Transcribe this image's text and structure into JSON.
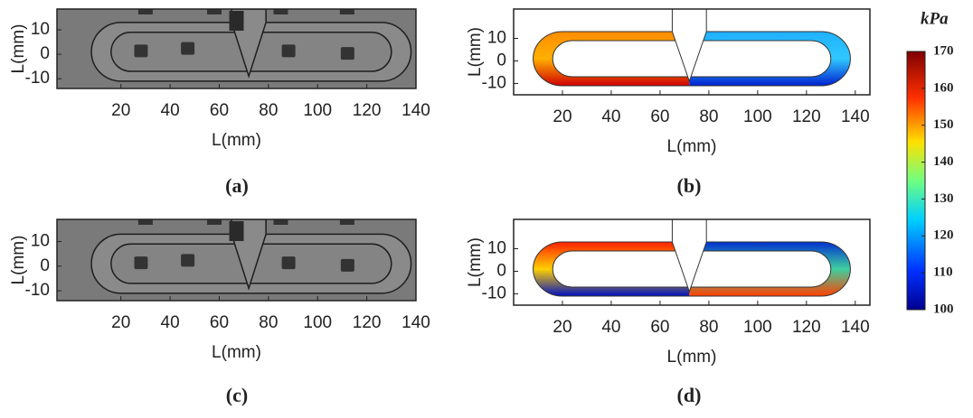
{
  "panels": [
    {
      "label": "(a)",
      "xlabel": "L(mm)",
      "ylabel": "L(mm)",
      "xlim": [
        -6,
        140
      ],
      "xticks": [
        20,
        40,
        60,
        80,
        100,
        120,
        140
      ],
      "ylim": [
        -14,
        18.5
      ],
      "yticks": [
        -10,
        0,
        10
      ]
    },
    {
      "label": "(b)",
      "xlabel": "L(mm)",
      "ylabel": "L(mm)",
      "xlim": [
        0,
        146
      ],
      "xticks": [
        20,
        40,
        60,
        80,
        100,
        120,
        140
      ],
      "ylim": [
        -15,
        23
      ],
      "yticks": [
        -10,
        0,
        10
      ]
    },
    {
      "label": "(c)",
      "xlabel": "L(mm)",
      "ylabel": "L(mm)",
      "xlim": [
        -6,
        140
      ],
      "xticks": [
        20,
        40,
        60,
        80,
        100,
        120,
        140
      ],
      "ylim": [
        -14,
        19
      ],
      "yticks": [
        -10,
        0,
        10
      ]
    },
    {
      "label": "(d)",
      "xlabel": "L(mm)",
      "ylabel": "L(mm)",
      "xlim": [
        0,
        146
      ],
      "xticks": [
        20,
        40,
        60,
        80,
        100,
        120,
        140
      ],
      "ylim": [
        -15,
        23
      ],
      "yticks": [
        -10,
        0,
        10
      ]
    }
  ],
  "colorbar": {
    "unit": "kPa",
    "lim": [
      100,
      170
    ],
    "ticks": [
      100,
      110,
      120,
      130,
      140,
      150,
      160,
      170
    ]
  }
}
